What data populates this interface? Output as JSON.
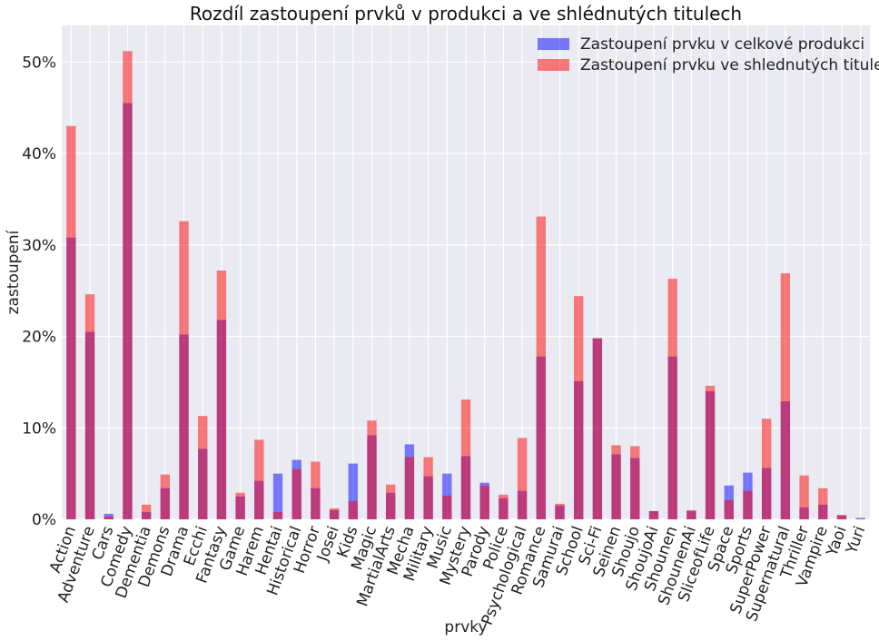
{
  "chart_data": {
    "type": "bar",
    "title": "Rozdíl zastoupení prvků v produkci a ve shlédnutých titulech",
    "xlabel": "prvky",
    "ylabel": "zastoupení",
    "ylim": [
      0,
      54
    ],
    "yticks": [
      0,
      10,
      20,
      30,
      40,
      50
    ],
    "ytick_labels": [
      "0%",
      "10%",
      "20%",
      "30%",
      "40%",
      "50%"
    ],
    "grid": true,
    "legend_position": "top-right",
    "overlay": true,
    "categories": [
      "Action",
      "Adventure",
      "Cars",
      "Comedy",
      "Dementia",
      "Demons",
      "Drama",
      "Ecchi",
      "Fantasy",
      "Game",
      "Harem",
      "Hentai",
      "Historical",
      "Horror",
      "Josei",
      "Kids",
      "Magic",
      "MartialArts",
      "Mecha",
      "Military",
      "Music",
      "Mystery",
      "Parody",
      "Police",
      "Psychological",
      "Romance",
      "Samurai",
      "School",
      "Sci-Fi",
      "Seinen",
      "Shoujo",
      "ShoujoAi",
      "Shounen",
      "ShounenAi",
      "SliceofLife",
      "Space",
      "Sports",
      "SuperPower",
      "Supernatural",
      "Thriller",
      "Vampire",
      "Yaoi",
      "Yuri"
    ],
    "series": [
      {
        "name": "Zastoupení prvku v celkové produkci",
        "color": "#0000ff",
        "alpha": 0.5,
        "values": [
          30.8,
          20.5,
          0.6,
          45.5,
          0.8,
          3.4,
          20.2,
          7.7,
          21.8,
          2.5,
          4.2,
          5.0,
          6.5,
          3.4,
          1.0,
          6.1,
          9.2,
          2.9,
          8.2,
          4.7,
          5.0,
          6.9,
          4.0,
          2.3,
          3.1,
          17.8,
          1.5,
          15.1,
          19.8,
          7.1,
          6.7,
          0.9,
          17.8,
          0.9,
          14.0,
          3.7,
          5.1,
          5.6,
          12.9,
          1.3,
          1.6,
          0.4,
          0.15
        ]
      },
      {
        "name": "Zastoupení prvku ve shlednutých titulech",
        "color": "#ff0000",
        "alpha": 0.5,
        "values": [
          43.0,
          24.6,
          0.3,
          51.2,
          1.6,
          4.9,
          32.6,
          11.3,
          27.2,
          2.9,
          8.7,
          0.8,
          5.5,
          6.3,
          1.2,
          2.0,
          10.8,
          3.8,
          6.8,
          6.8,
          2.6,
          13.1,
          3.7,
          2.7,
          8.9,
          33.1,
          1.7,
          24.4,
          19.8,
          8.1,
          8.0,
          0.9,
          26.3,
          1.0,
          14.6,
          2.1,
          3.1,
          11.0,
          26.9,
          4.8,
          3.4,
          0.5,
          0.05
        ]
      }
    ]
  }
}
